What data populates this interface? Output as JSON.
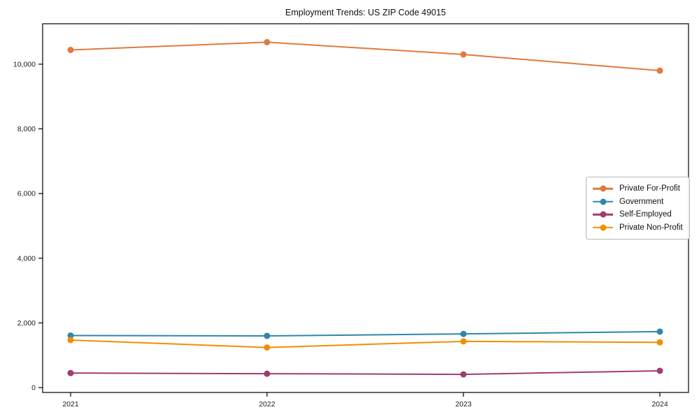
{
  "figure_title": "Employment Trends: US ZIP Code 49015",
  "chart_data": {
    "type": "line",
    "title": "Employment Trends: US ZIP Code 49015",
    "xlabel": "",
    "ylabel": "",
    "categories": [
      "2021",
      "2022",
      "2023",
      "2024"
    ],
    "x_tick_labels": [
      "2021",
      "2022",
      "2023",
      "2024"
    ],
    "y_ticks": [
      0,
      2000,
      4000,
      6000,
      8000,
      10000
    ],
    "y_tick_labels": [
      "0",
      "2,000",
      "4,000",
      "6,000",
      "8,000",
      "10,000"
    ],
    "ylim": [
      -150,
      11250
    ],
    "grid": false,
    "legend_position": "center-right",
    "marker": "circle",
    "series": [
      {
        "name": "Private For-Profit",
        "color": "#E0793E",
        "values": [
          10440,
          10680,
          10300,
          9800
        ]
      },
      {
        "name": "Government",
        "color": "#2E86AB",
        "values": [
          1610,
          1600,
          1660,
          1730
        ]
      },
      {
        "name": "Self-Employed",
        "color": "#A23B72",
        "values": [
          450,
          430,
          410,
          520
        ]
      },
      {
        "name": "Private Non-Profit",
        "color": "#F18F01",
        "values": [
          1470,
          1240,
          1430,
          1400
        ]
      }
    ],
    "axis_color": "#000000",
    "tick_label_color": "#1a1a1a"
  }
}
